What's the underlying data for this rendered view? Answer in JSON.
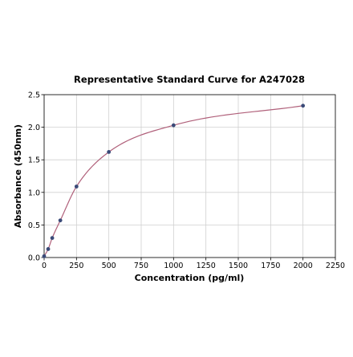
{
  "chart_data": {
    "type": "scatter",
    "title": "Representative Standard Curve for A247028",
    "xlabel": "Concentration (pg/ml)",
    "ylabel": "Absorbance (450nm)",
    "xlim": [
      0,
      2250
    ],
    "ylim": [
      0,
      2.5
    ],
    "xticks": [
      0,
      250,
      500,
      750,
      1000,
      1250,
      1500,
      1750,
      2000,
      2250
    ],
    "yticks": [
      0.0,
      0.5,
      1.0,
      1.5,
      2.0,
      2.5
    ],
    "xtick_labels": [
      "0",
      "250",
      "500",
      "750",
      "1000",
      "1250",
      "1500",
      "1750",
      "2000",
      "2250"
    ],
    "ytick_labels": [
      "0.0",
      "0.5",
      "1.0",
      "1.5",
      "2.0",
      "2.5"
    ],
    "grid": true,
    "series": [
      {
        "points": [
          {
            "x": 0,
            "y": 0.02
          },
          {
            "x": 31.25,
            "y": 0.13
          },
          {
            "x": 62.5,
            "y": 0.3
          },
          {
            "x": 125,
            "y": 0.57
          },
          {
            "x": 250,
            "y": 1.09
          },
          {
            "x": 500,
            "y": 1.62
          },
          {
            "x": 1000,
            "y": 2.03
          },
          {
            "x": 2000,
            "y": 2.33
          }
        ]
      }
    ],
    "colors": {
      "curve": "#b0607a",
      "points": "#3a4a78"
    }
  }
}
